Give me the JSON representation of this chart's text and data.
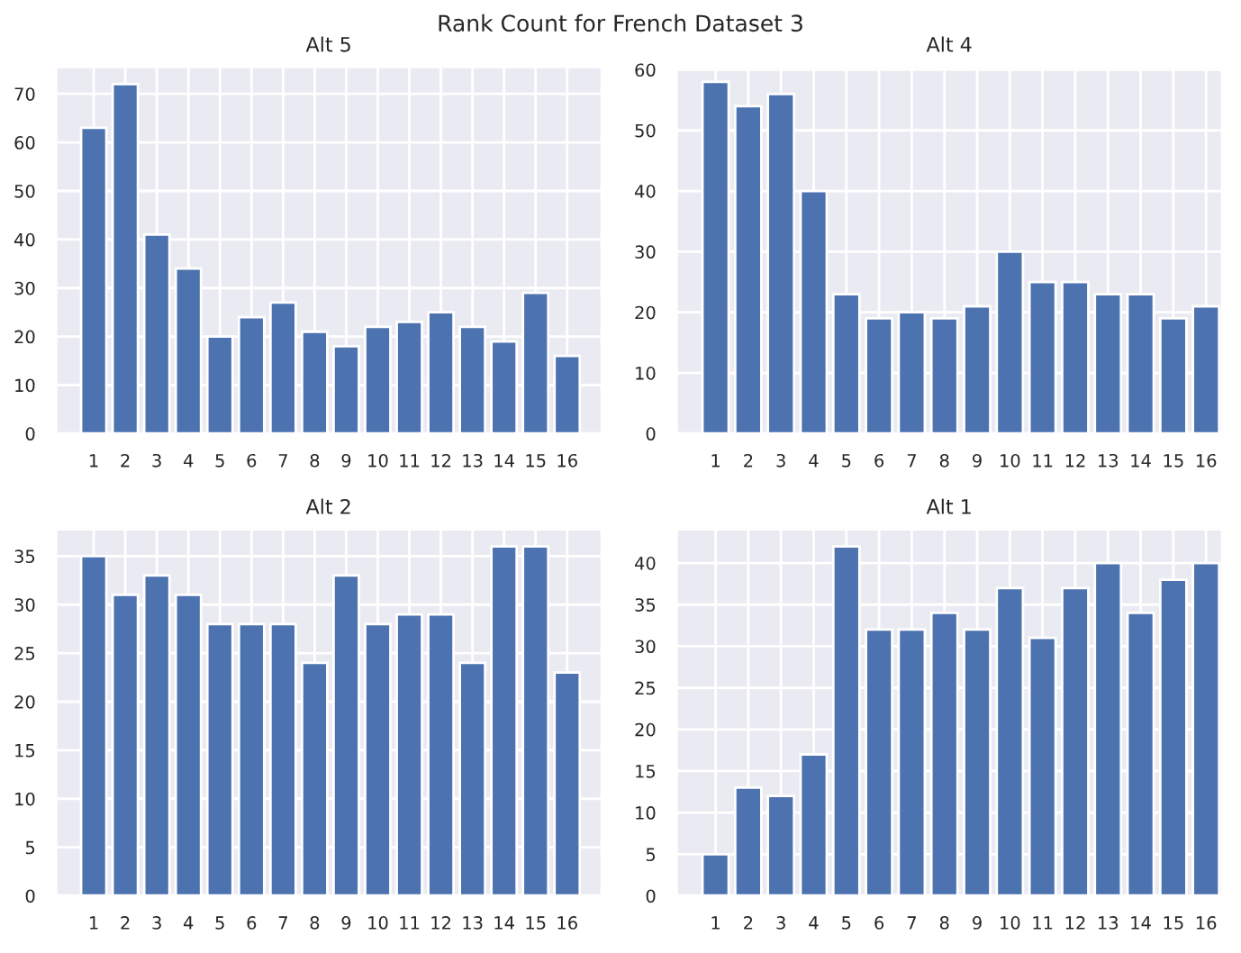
{
  "chart_data": [
    {
      "type": "bar",
      "title": "Alt 5",
      "x": [
        1,
        2,
        3,
        4,
        5,
        6,
        7,
        8,
        9,
        10,
        11,
        12,
        13,
        14,
        15,
        16
      ],
      "values": [
        63,
        72,
        41,
        34,
        20,
        24,
        27,
        21,
        18,
        22,
        23,
        25,
        22,
        19,
        29,
        16
      ],
      "color": "#4c72b0",
      "xlim": [
        -0.2,
        17.1
      ],
      "xticks": [
        1,
        2,
        3,
        4,
        5,
        6,
        7,
        8,
        9,
        10,
        11,
        12,
        13,
        14,
        15,
        16
      ],
      "ylim": [
        0,
        75.6
      ],
      "yticks": [
        0,
        10,
        20,
        30,
        40,
        50,
        60,
        70
      ],
      "grid": true
    },
    {
      "type": "bar",
      "title": "Alt 4",
      "x": [
        1,
        2,
        3,
        4,
        5,
        6,
        7,
        8,
        9,
        10,
        11,
        12,
        13,
        14,
        15,
        16
      ],
      "values": [
        58,
        54,
        56,
        40,
        23,
        19,
        20,
        19,
        21,
        30,
        25,
        25,
        23,
        23,
        19,
        21
      ],
      "color": "#4c72b0",
      "xlim": [
        -0.2,
        16.5
      ],
      "xticks": [
        1,
        2,
        3,
        4,
        5,
        6,
        7,
        8,
        9,
        10,
        11,
        12,
        13,
        14,
        15,
        16
      ],
      "ylim": [
        0,
        60.5
      ],
      "yticks": [
        0,
        10,
        20,
        30,
        40,
        50,
        60
      ],
      "grid": true
    },
    {
      "type": "bar",
      "title": "Alt 2",
      "x": [
        1,
        2,
        3,
        4,
        5,
        6,
        7,
        8,
        9,
        10,
        11,
        12,
        13,
        14,
        15,
        16
      ],
      "values": [
        35,
        31,
        33,
        31,
        28,
        28,
        28,
        24,
        33,
        28,
        29,
        29,
        24,
        36,
        36,
        23
      ],
      "color": "#4c72b0",
      "xlim": [
        -0.2,
        17.1
      ],
      "xticks": [
        1,
        2,
        3,
        4,
        5,
        6,
        7,
        8,
        9,
        10,
        11,
        12,
        13,
        14,
        15,
        16
      ],
      "ylim": [
        0,
        37.8
      ],
      "yticks": [
        0,
        5,
        10,
        15,
        20,
        25,
        30,
        35
      ],
      "grid": true
    },
    {
      "type": "bar",
      "title": "Alt 1",
      "x": [
        1,
        2,
        3,
        4,
        5,
        6,
        7,
        8,
        9,
        10,
        11,
        12,
        13,
        14,
        15,
        16
      ],
      "values": [
        5,
        13,
        12,
        17,
        42,
        32,
        32,
        34,
        32,
        37,
        31,
        37,
        40,
        34,
        38,
        40
      ],
      "color": "#4c72b0",
      "xlim": [
        -0.2,
        16.5
      ],
      "xticks": [
        1,
        2,
        3,
        4,
        5,
        6,
        7,
        8,
        9,
        10,
        11,
        12,
        13,
        14,
        15,
        16
      ],
      "ylim": [
        0,
        44.1
      ],
      "yticks": [
        0,
        5,
        10,
        15,
        20,
        25,
        30,
        35,
        40
      ],
      "grid": true
    },
    {
      "type": "other",
      "title": "Rank Count for French Dataset 3"
    }
  ]
}
